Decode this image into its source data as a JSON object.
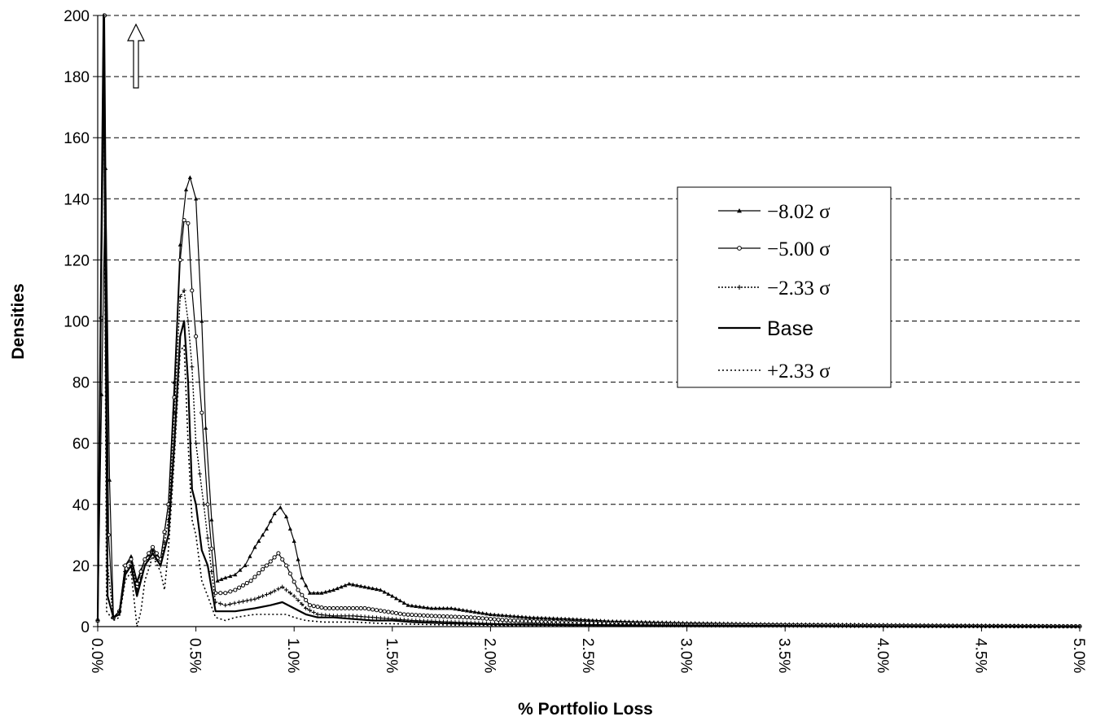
{
  "chart_data": {
    "type": "line",
    "xlabel": "% Portfolio Loss",
    "ylabel": "Densities",
    "xlim": [
      0,
      5.0
    ],
    "ylim": [
      0,
      200
    ],
    "y_ticks": [
      "0",
      "20",
      "40",
      "60",
      "80",
      "100",
      "120",
      "140",
      "160",
      "180",
      "200"
    ],
    "x_ticks": [
      "0.0%",
      "0.5%",
      "1.0%",
      "1.5%",
      "2.0%",
      "2.5%",
      "3.0%",
      "3.5%",
      "4.0%",
      "4.5%",
      "5.0%"
    ],
    "grid": "horizontal dashed",
    "legend_position": "right",
    "annotation": "up-arrow (spike exceeds axis)",
    "series": [
      {
        "name": "−8.02 σ",
        "style": "solid-triangle",
        "points": [
          [
            0.0,
            2
          ],
          [
            0.04,
            150
          ],
          [
            0.06,
            48
          ],
          [
            0.08,
            3
          ],
          [
            0.11,
            5
          ],
          [
            0.14,
            20
          ],
          [
            0.17,
            23
          ],
          [
            0.2,
            15
          ],
          [
            0.24,
            22
          ],
          [
            0.28,
            25
          ],
          [
            0.32,
            22
          ],
          [
            0.36,
            40
          ],
          [
            0.39,
            80
          ],
          [
            0.42,
            125
          ],
          [
            0.45,
            143
          ],
          [
            0.47,
            147
          ],
          [
            0.5,
            140
          ],
          [
            0.53,
            100
          ],
          [
            0.55,
            65
          ],
          [
            0.58,
            35
          ],
          [
            0.61,
            15
          ],
          [
            0.65,
            16
          ],
          [
            0.7,
            17
          ],
          [
            0.75,
            20
          ],
          [
            0.8,
            26
          ],
          [
            0.86,
            32
          ],
          [
            0.9,
            37
          ],
          [
            0.93,
            39
          ],
          [
            0.96,
            36
          ],
          [
            1.0,
            28
          ],
          [
            1.04,
            16
          ],
          [
            1.08,
            11
          ],
          [
            1.14,
            11
          ],
          [
            1.2,
            12
          ],
          [
            1.28,
            14
          ],
          [
            1.36,
            13
          ],
          [
            1.44,
            12
          ],
          [
            1.5,
            10
          ],
          [
            1.58,
            7
          ],
          [
            1.7,
            6
          ],
          [
            1.8,
            6
          ],
          [
            1.9,
            5
          ],
          [
            2.0,
            4
          ],
          [
            2.2,
            3
          ],
          [
            2.4,
            2.5
          ],
          [
            2.6,
            1.8
          ],
          [
            3.0,
            1.2
          ],
          [
            3.5,
            0.8
          ],
          [
            4.0,
            0.6
          ],
          [
            4.5,
            0.4
          ],
          [
            5.0,
            0.2
          ]
        ]
      },
      {
        "name": "−5.00 σ",
        "style": "solid-circle",
        "points": [
          [
            0.0,
            2
          ],
          [
            0.035,
            200
          ],
          [
            0.055,
            30
          ],
          [
            0.08,
            3
          ],
          [
            0.11,
            5
          ],
          [
            0.14,
            20
          ],
          [
            0.17,
            22
          ],
          [
            0.2,
            14
          ],
          [
            0.24,
            22
          ],
          [
            0.28,
            26
          ],
          [
            0.32,
            22
          ],
          [
            0.36,
            40
          ],
          [
            0.39,
            75
          ],
          [
            0.42,
            120
          ],
          [
            0.44,
            133
          ],
          [
            0.46,
            132
          ],
          [
            0.48,
            110
          ],
          [
            0.5,
            95
          ],
          [
            0.53,
            70
          ],
          [
            0.56,
            40
          ],
          [
            0.6,
            11
          ],
          [
            0.65,
            11
          ],
          [
            0.7,
            12
          ],
          [
            0.78,
            15
          ],
          [
            0.86,
            20
          ],
          [
            0.92,
            24
          ],
          [
            0.96,
            20
          ],
          [
            1.02,
            12
          ],
          [
            1.08,
            7
          ],
          [
            1.16,
            6
          ],
          [
            1.26,
            6
          ],
          [
            1.36,
            6
          ],
          [
            1.46,
            5
          ],
          [
            1.56,
            4
          ],
          [
            1.7,
            3.5
          ],
          [
            1.9,
            3
          ],
          [
            2.1,
            2
          ],
          [
            2.3,
            1.5
          ],
          [
            2.6,
            1
          ],
          [
            3.0,
            0.7
          ],
          [
            3.5,
            0.5
          ],
          [
            4.0,
            0.3
          ],
          [
            4.5,
            0.2
          ],
          [
            5.0,
            0.1
          ]
        ]
      },
      {
        "name": "−2.33 σ",
        "style": "dotted-plus",
        "points": [
          [
            0.0,
            2
          ],
          [
            0.03,
            200
          ],
          [
            0.05,
            20
          ],
          [
            0.08,
            3
          ],
          [
            0.11,
            5
          ],
          [
            0.14,
            18
          ],
          [
            0.17,
            21
          ],
          [
            0.2,
            12
          ],
          [
            0.24,
            20
          ],
          [
            0.28,
            24
          ],
          [
            0.32,
            20
          ],
          [
            0.36,
            35
          ],
          [
            0.39,
            70
          ],
          [
            0.42,
            108
          ],
          [
            0.44,
            110
          ],
          [
            0.46,
            100
          ],
          [
            0.48,
            85
          ],
          [
            0.5,
            60
          ],
          [
            0.54,
            40
          ],
          [
            0.58,
            18
          ],
          [
            0.6,
            8
          ],
          [
            0.65,
            7
          ],
          [
            0.72,
            8
          ],
          [
            0.8,
            9
          ],
          [
            0.88,
            11
          ],
          [
            0.94,
            13
          ],
          [
            1.0,
            10
          ],
          [
            1.06,
            6
          ],
          [
            1.12,
            4
          ],
          [
            1.2,
            3.5
          ],
          [
            1.3,
            3.5
          ],
          [
            1.4,
            3
          ],
          [
            1.5,
            2.5
          ],
          [
            1.6,
            2
          ],
          [
            1.8,
            1.5
          ],
          [
            2.0,
            1
          ],
          [
            2.4,
            0.7
          ],
          [
            3.0,
            0.4
          ],
          [
            3.5,
            0.3
          ],
          [
            4.0,
            0.2
          ],
          [
            5.0,
            0.1
          ]
        ]
      },
      {
        "name": "Base",
        "style": "solid",
        "points": [
          [
            0.0,
            2
          ],
          [
            0.03,
            200
          ],
          [
            0.05,
            10
          ],
          [
            0.08,
            3
          ],
          [
            0.11,
            4
          ],
          [
            0.14,
            17
          ],
          [
            0.17,
            20
          ],
          [
            0.2,
            10
          ],
          [
            0.24,
            20
          ],
          [
            0.28,
            24
          ],
          [
            0.32,
            20
          ],
          [
            0.36,
            30
          ],
          [
            0.39,
            60
          ],
          [
            0.42,
            95
          ],
          [
            0.44,
            100
          ],
          [
            0.46,
            80
          ],
          [
            0.48,
            45
          ],
          [
            0.5,
            40
          ],
          [
            0.53,
            25
          ],
          [
            0.56,
            20
          ],
          [
            0.6,
            5
          ],
          [
            0.65,
            5
          ],
          [
            0.7,
            5
          ],
          [
            0.8,
            6
          ],
          [
            0.88,
            7
          ],
          [
            0.94,
            8
          ],
          [
            1.0,
            6
          ],
          [
            1.06,
            4
          ],
          [
            1.12,
            3
          ],
          [
            1.2,
            3
          ],
          [
            1.3,
            2.5
          ],
          [
            1.4,
            2
          ],
          [
            1.5,
            2
          ],
          [
            1.6,
            1.5
          ],
          [
            1.8,
            1
          ],
          [
            2.0,
            0.8
          ],
          [
            2.4,
            0.5
          ],
          [
            3.0,
            0.3
          ],
          [
            3.5,
            0.2
          ],
          [
            4.0,
            0.1
          ],
          [
            5.0,
            0.05
          ]
        ]
      },
      {
        "name": "+2.33 σ",
        "style": "dotted",
        "points": [
          [
            0.0,
            2
          ],
          [
            0.03,
            200
          ],
          [
            0.045,
            5
          ],
          [
            0.08,
            2
          ],
          [
            0.11,
            3
          ],
          [
            0.14,
            15
          ],
          [
            0.17,
            18
          ],
          [
            0.2,
            0
          ],
          [
            0.22,
            5
          ],
          [
            0.24,
            15
          ],
          [
            0.28,
            23
          ],
          [
            0.32,
            18
          ],
          [
            0.34,
            12
          ],
          [
            0.36,
            25
          ],
          [
            0.39,
            55
          ],
          [
            0.42,
            90
          ],
          [
            0.44,
            92
          ],
          [
            0.46,
            60
          ],
          [
            0.48,
            35
          ],
          [
            0.5,
            30
          ],
          [
            0.53,
            15
          ],
          [
            0.56,
            10
          ],
          [
            0.6,
            3
          ],
          [
            0.65,
            2
          ],
          [
            0.7,
            3
          ],
          [
            0.8,
            4
          ],
          [
            0.9,
            4
          ],
          [
            0.96,
            4
          ],
          [
            1.0,
            3
          ],
          [
            1.06,
            2
          ],
          [
            1.15,
            1.5
          ],
          [
            1.3,
            1.5
          ],
          [
            1.45,
            1
          ],
          [
            1.6,
            0.8
          ],
          [
            1.8,
            0.5
          ],
          [
            2.2,
            0.3
          ],
          [
            3.0,
            0.2
          ],
          [
            4.0,
            0.1
          ],
          [
            5.0,
            0.05
          ]
        ]
      }
    ]
  }
}
